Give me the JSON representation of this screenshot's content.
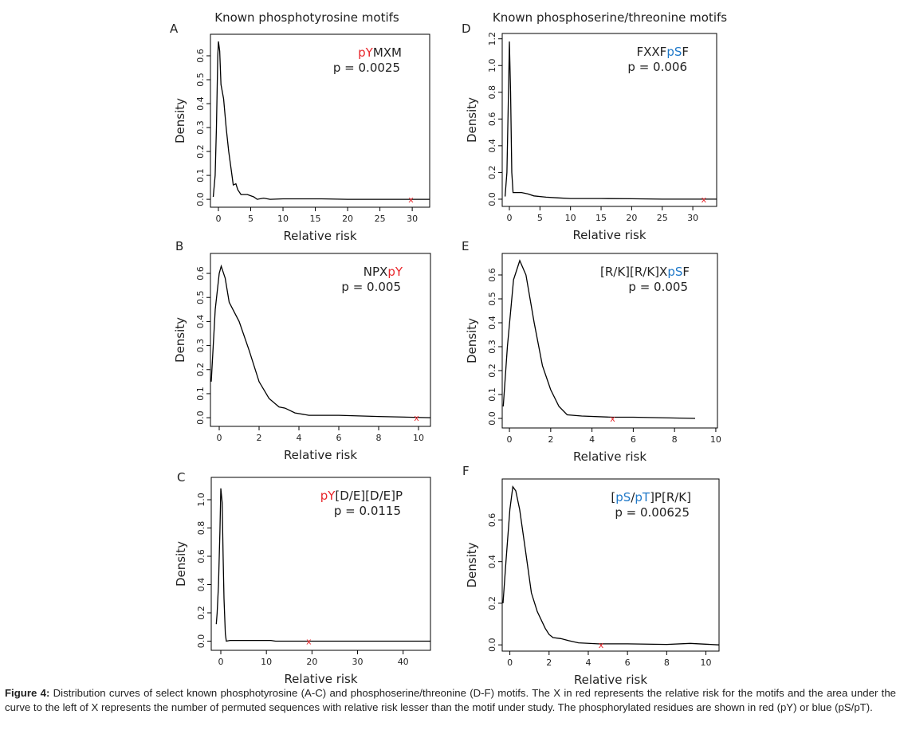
{
  "figure": {
    "column_headers": [
      "Known phosphotyrosine motifs",
      "Known phosphoserine/threonine motifs"
    ],
    "caption_label": "Figure 4:",
    "caption_text": " Distribution curves of select known phosphotyrosine (A-C) and phosphoserine/threonine (D-F) motifs.  The X in red represents the relative risk for the motifs and the area under the curve to the left of X represents the number of permuted sequences with relative risk lesser than the motif under study. The phosphorylated residues are shown in red (pY) or blue (pS/pT).",
    "colors": {
      "red": "#e8262b",
      "blue": "#1f78c8",
      "curve": "#000000"
    }
  },
  "chart_data": [
    {
      "panel": "A",
      "type": "line",
      "xlabel": "Relative risk",
      "ylabel": "Density",
      "xlim": [
        -1.23,
        32.7
      ],
      "ylim": [
        -0.033,
        0.69
      ],
      "xticks": [
        0,
        5,
        10,
        15,
        20,
        25,
        30
      ],
      "yticks": [
        "0.0",
        "0.1",
        "0.2",
        "0.3",
        "0.4",
        "0.5",
        "0.6"
      ],
      "motif": [
        [
          "pY",
          "red"
        ],
        [
          "MXM",
          "black"
        ]
      ],
      "pvalue": "p = 0.0025",
      "marker_x": 29.8,
      "marker_y": 0,
      "points": [
        [
          -0.8,
          0.01
        ],
        [
          -0.5,
          0.1
        ],
        [
          -0.3,
          0.3
        ],
        [
          -0.1,
          0.6
        ],
        [
          0,
          0.66
        ],
        [
          0.2,
          0.62
        ],
        [
          0.4,
          0.48
        ],
        [
          0.8,
          0.42
        ],
        [
          1.2,
          0.3
        ],
        [
          1.6,
          0.2
        ],
        [
          2,
          0.12
        ],
        [
          2.3,
          0.06
        ],
        [
          2.7,
          0.065
        ],
        [
          3,
          0.04
        ],
        [
          3.5,
          0.02
        ],
        [
          4.5,
          0.02
        ],
        [
          5.5,
          0.01
        ],
        [
          6,
          0
        ],
        [
          7,
          0.005
        ],
        [
          8,
          0
        ],
        [
          10,
          0.002
        ],
        [
          12,
          0.002
        ],
        [
          16,
          0.002
        ],
        [
          20,
          0
        ],
        [
          30,
          0
        ],
        [
          32.7,
          0
        ]
      ]
    },
    {
      "panel": "B",
      "type": "line",
      "xlabel": "Relative risk",
      "ylabel": "Density",
      "xlim": [
        -0.44,
        10.6
      ],
      "ylim": [
        -0.036,
        0.683
      ],
      "xticks": [
        0,
        2,
        4,
        6,
        8,
        10
      ],
      "yticks": [
        "0.0",
        "0.1",
        "0.2",
        "0.3",
        "0.4",
        "0.5",
        "0.6"
      ],
      "motif": [
        [
          "NPX",
          "black"
        ],
        [
          "pY",
          "red"
        ]
      ],
      "pvalue": "p = 0.005",
      "marker_x": 9.9,
      "marker_y": 0,
      "points": [
        [
          -0.4,
          0.15
        ],
        [
          -0.2,
          0.45
        ],
        [
          0,
          0.6
        ],
        [
          0.1,
          0.63
        ],
        [
          0.3,
          0.58
        ],
        [
          0.5,
          0.48
        ],
        [
          1,
          0.4
        ],
        [
          1.5,
          0.28
        ],
        [
          2,
          0.15
        ],
        [
          2.5,
          0.08
        ],
        [
          3,
          0.045
        ],
        [
          3.3,
          0.04
        ],
        [
          3.8,
          0.02
        ],
        [
          4.5,
          0.01
        ],
        [
          6,
          0.01
        ],
        [
          8,
          0.005
        ],
        [
          10.6,
          0
        ]
      ]
    },
    {
      "panel": "C",
      "type": "line",
      "xlabel": "Relative risk",
      "ylabel": "Density",
      "xlim": [
        -2.1,
        46
      ],
      "ylim": [
        -0.065,
        1.158
      ],
      "xticks": [
        0,
        10,
        20,
        30,
        40
      ],
      "yticks": [
        "0.0",
        "0.2",
        "0.4",
        "0.6",
        "0.8",
        "1.0"
      ],
      "motif": [
        [
          "pY",
          "red"
        ],
        [
          "[D/E][D/E]P",
          "black"
        ]
      ],
      "pvalue": "p = 0.0115",
      "marker_x": 19.3,
      "marker_y": 0,
      "points": [
        [
          -1,
          0.12
        ],
        [
          -0.8,
          0.2
        ],
        [
          -0.5,
          0.4
        ],
        [
          -0.2,
          0.78
        ],
        [
          0,
          1.08
        ],
        [
          0.3,
          0.98
        ],
        [
          0.5,
          0.6
        ],
        [
          0.7,
          0.3
        ],
        [
          1,
          0.05
        ],
        [
          1.2,
          0
        ],
        [
          2,
          0.005
        ],
        [
          11,
          0.005
        ],
        [
          12,
          0
        ],
        [
          46,
          0
        ]
      ]
    },
    {
      "panel": "D",
      "type": "line",
      "xlabel": "Relative risk",
      "ylabel": "Density",
      "xlim": [
        -1.17,
        33.9
      ],
      "ylim": [
        -0.054,
        1.24
      ],
      "xticks": [
        0,
        5,
        10,
        15,
        20,
        25,
        30
      ],
      "yticks": [
        "0.0",
        "0.2",
        "0.4",
        "0.6",
        "0.8",
        "1.0",
        "1.2"
      ],
      "motif": [
        [
          "FXXF",
          "black"
        ],
        [
          "pS",
          "blue"
        ],
        [
          "F",
          "black"
        ]
      ],
      "pvalue": "p = 0.006",
      "marker_x": 31.8,
      "marker_y": 0,
      "points": [
        [
          -0.7,
          0.02
        ],
        [
          -0.4,
          0.2
        ],
        [
          -0.1,
          0.9
        ],
        [
          0,
          1.18
        ],
        [
          0.2,
          0.8
        ],
        [
          0.4,
          0.2
        ],
        [
          0.6,
          0.05
        ],
        [
          1,
          0.05
        ],
        [
          2,
          0.05
        ],
        [
          3,
          0.04
        ],
        [
          4,
          0.025
        ],
        [
          6,
          0.015
        ],
        [
          8,
          0.01
        ],
        [
          10,
          0.005
        ],
        [
          15,
          0.005
        ],
        [
          20,
          0.003
        ],
        [
          25,
          0
        ],
        [
          33.9,
          0
        ]
      ]
    },
    {
      "panel": "E",
      "type": "line",
      "xlabel": "Relative risk",
      "ylabel": "Density",
      "xlim": [
        -0.35,
        10.08
      ],
      "ylim": [
        -0.04,
        0.69
      ],
      "xticks": [
        0,
        2,
        4,
        6,
        8,
        10
      ],
      "yticks": [
        "0.0",
        "0.1",
        "0.2",
        "0.3",
        "0.4",
        "0.5",
        "0.6"
      ],
      "motif": [
        [
          "[R/K][R/K]X",
          "black"
        ],
        [
          "pS",
          "blue"
        ],
        [
          "F",
          "black"
        ]
      ],
      "pvalue": "p = 0.005",
      "marker_x": 5.0,
      "marker_y": 0,
      "points": [
        [
          -0.3,
          0.05
        ],
        [
          -0.1,
          0.3
        ],
        [
          0.2,
          0.58
        ],
        [
          0.5,
          0.66
        ],
        [
          0.8,
          0.6
        ],
        [
          1.2,
          0.4
        ],
        [
          1.6,
          0.22
        ],
        [
          2,
          0.12
        ],
        [
          2.4,
          0.05
        ],
        [
          2.8,
          0.015
        ],
        [
          3.5,
          0.01
        ],
        [
          5,
          0.005
        ],
        [
          6,
          0.005
        ],
        [
          9,
          0
        ]
      ]
    },
    {
      "panel": "F",
      "type": "line",
      "xlabel": "Relative risk",
      "ylabel": "Density",
      "xlim": [
        -0.39,
        10.67
      ],
      "ylim": [
        -0.03,
        0.797
      ],
      "xticks": [
        0,
        2,
        4,
        6,
        8,
        10
      ],
      "yticks": [
        "0.0",
        "0.2",
        "0.4",
        "0.6"
      ],
      "motif": [
        [
          "[",
          "black"
        ],
        [
          "pS",
          "blue"
        ],
        [
          "/",
          "black"
        ],
        [
          "pT",
          "blue"
        ],
        [
          "]P[R/K]",
          "black"
        ]
      ],
      "pvalue": "p = 0.00625",
      "marker_x": 4.65,
      "marker_y": 0,
      "points": [
        [
          -0.35,
          0.2
        ],
        [
          -0.2,
          0.4
        ],
        [
          0,
          0.65
        ],
        [
          0.15,
          0.76
        ],
        [
          0.3,
          0.74
        ],
        [
          0.5,
          0.65
        ],
        [
          0.8,
          0.45
        ],
        [
          1.1,
          0.25
        ],
        [
          1.4,
          0.16
        ],
        [
          1.8,
          0.08
        ],
        [
          2,
          0.05
        ],
        [
          2.2,
          0.035
        ],
        [
          2.6,
          0.03
        ],
        [
          3,
          0.02
        ],
        [
          3.5,
          0.01
        ],
        [
          4.5,
          0.005
        ],
        [
          6,
          0.005
        ],
        [
          8,
          0.002
        ],
        [
          9.2,
          0.007
        ],
        [
          10.67,
          0
        ]
      ]
    }
  ]
}
